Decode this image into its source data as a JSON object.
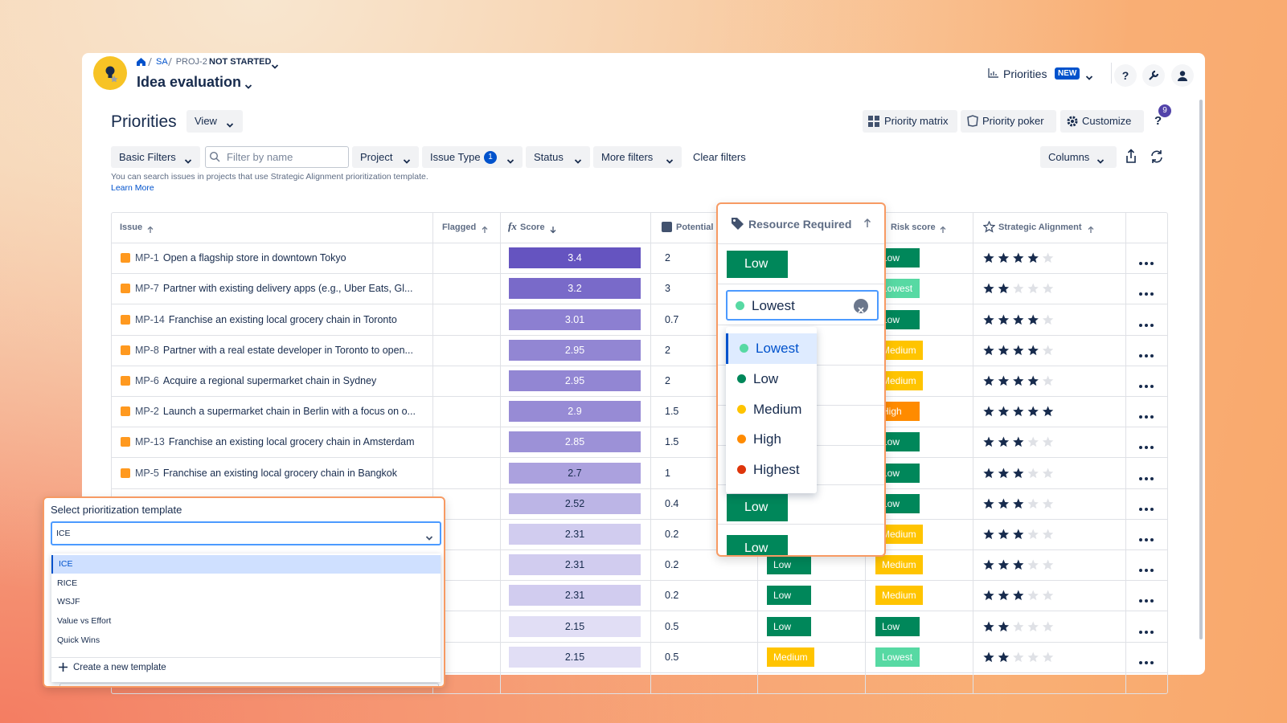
{
  "header": {
    "breadcrumb": [
      "SA",
      "PROJ-2"
    ],
    "status": "NOT STARTED",
    "project": "Idea evaluation",
    "nav": {
      "label": "Priorities",
      "badge": "NEW",
      "help": "?"
    }
  },
  "toolbar": {
    "title": "Priorities",
    "view": "View",
    "buttons": [
      "Priority matrix",
      "Priority poker",
      "Customize"
    ],
    "help": "?",
    "help_badge": 9
  },
  "filters": {
    "basic": "Basic Filters",
    "search_placeholder": "Filter by name",
    "dropdowns": [
      "Project",
      "Issue Type",
      "Status",
      "More filters"
    ],
    "issue_type_badge": 1,
    "clear": "Clear filters",
    "columns": "Columns",
    "info": "You can search issues in projects that use Strategic Alignment prioritization template.",
    "learn_more": "Learn More"
  },
  "table": {
    "columns": [
      "Issue",
      "Flagged",
      "Score",
      "Potential",
      "Resource Required",
      "Risk score",
      "Strategic Alignment"
    ],
    "score_icon": "fx",
    "level_colors": {
      "Lowest": "#57d9a3",
      "Low": "#00875a",
      "Medium": "#ffc400",
      "High": "#ff8b00",
      "Highest": "#de350b"
    },
    "rows": [
      {
        "key": "MP-1",
        "title": "Open a flagship store in downtown Tokyo",
        "score": 3.4,
        "potential": 2,
        "resource": null,
        "risk": "Low",
        "alignment": 4
      },
      {
        "key": "MP-7",
        "title": "Partner with existing delivery apps (e.g., Uber Eats, Gl...",
        "score": 3.2,
        "potential": 3,
        "resource": null,
        "risk": "Lowest",
        "alignment": 2
      },
      {
        "key": "MP-14",
        "title": "Franchise an existing local grocery chain in Toronto",
        "score": 3.01,
        "potential": 0.7,
        "resource": null,
        "risk": "Low",
        "alignment": 4
      },
      {
        "key": "MP-8",
        "title": "Partner with a real estate developer in Toronto to open...",
        "score": 2.95,
        "potential": 2,
        "resource": null,
        "risk": "Medium",
        "alignment": 4
      },
      {
        "key": "MP-6",
        "title": "Acquire a regional supermarket chain in Sydney",
        "score": 2.95,
        "potential": 2,
        "resource": null,
        "risk": "Medium",
        "alignment": 4
      },
      {
        "key": "MP-2",
        "title": "Launch a supermarket chain in Berlin with a focus on o...",
        "score": 2.9,
        "potential": 1.5,
        "resource": null,
        "risk": "High",
        "alignment": 5
      },
      {
        "key": "MP-13",
        "title": "Franchise an existing local grocery chain in Amsterdam",
        "score": 2.85,
        "potential": 1.5,
        "resource": null,
        "risk": "Low",
        "alignment": 3
      },
      {
        "key": "MP-5",
        "title": "Franchise an existing local grocery chain in Bangkok",
        "score": 2.7,
        "potential": 1,
        "resource": null,
        "risk": "Low",
        "alignment": 3
      },
      {
        "key": null,
        "title": null,
        "score": 2.52,
        "potential": 0.4,
        "resource": null,
        "risk": "Low",
        "alignment": 3
      },
      {
        "key": null,
        "title": null,
        "score": 2.31,
        "potential": 0.2,
        "resource": null,
        "risk": "Medium",
        "alignment": 3
      },
      {
        "key": null,
        "title": null,
        "score": 2.31,
        "potential": 0.2,
        "resource": "Low",
        "risk": "Medium",
        "alignment": 3
      },
      {
        "key": null,
        "title": null,
        "score": 2.31,
        "potential": 0.2,
        "resource": "Low",
        "risk": "Medium",
        "alignment": 3
      },
      {
        "key": null,
        "title": null,
        "score": 2.15,
        "potential": 0.5,
        "resource": "Low",
        "risk": "Low",
        "alignment": 2
      },
      {
        "key": null,
        "title": null,
        "score": 2.15,
        "potential": 0.5,
        "resource": "Medium",
        "risk": "Lowest",
        "alignment": 2
      }
    ]
  },
  "resource_popup": {
    "header": "Resource Required",
    "cells": [
      "Low",
      "Low",
      "Low"
    ],
    "input": "Lowest",
    "options": [
      "Lowest",
      "Low",
      "Medium",
      "High",
      "Highest"
    ]
  },
  "template_popup": {
    "title": "Select prioritization template",
    "value": "ICE",
    "options": [
      "ICE",
      "RICE",
      "WSJF",
      "Value vs Effort",
      "Quick Wins"
    ],
    "create": "Create a new template"
  }
}
